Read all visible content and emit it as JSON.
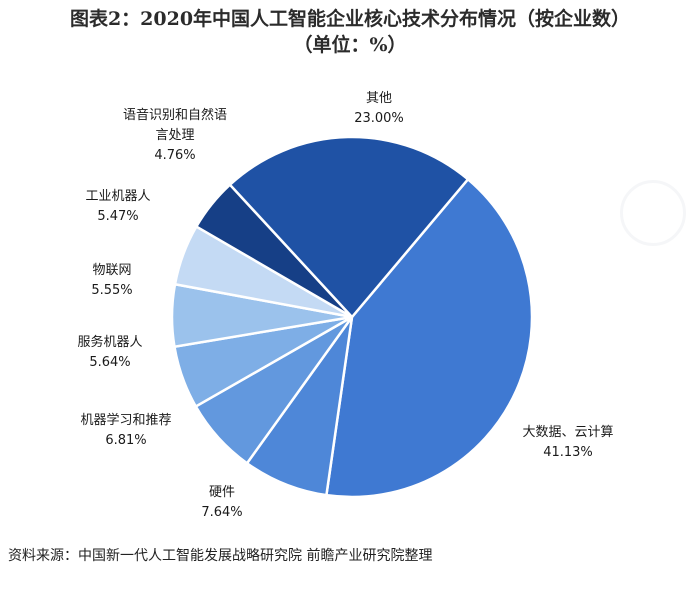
{
  "title_line1": "图表2：2020年中国人工智能企业核心技术分布情况（按企业数）",
  "title_line2": "（单位：%）",
  "source": "资料来源：中国新一代人工智能发展战略研究院 前瞻产业研究院整理",
  "chart_data": {
    "type": "pie",
    "title": "图表2：2020年中国人工智能企业核心技术分布情况（按企业数）（单位：%）",
    "slices": [
      {
        "label_lines": [
          "大数据、云计算"
        ],
        "value": 41.13,
        "value_label": "41.13%",
        "color": "#3f79d2"
      },
      {
        "label_lines": [
          "硬件"
        ],
        "value": 7.64,
        "value_label": "7.64%",
        "color": "#4e87d8"
      },
      {
        "label_lines": [
          "机器学习和推荐"
        ],
        "value": 6.81,
        "value_label": "6.81%",
        "color": "#6298de"
      },
      {
        "label_lines": [
          "服务机器人"
        ],
        "value": 5.64,
        "value_label": "5.64%",
        "color": "#7eaee6"
      },
      {
        "label_lines": [
          "物联网"
        ],
        "value": 5.55,
        "value_label": "5.55%",
        "color": "#9bc2ec"
      },
      {
        "label_lines": [
          "工业机器人"
        ],
        "value": 5.47,
        "value_label": "5.47%",
        "color": "#c4daf4"
      },
      {
        "label_lines": [
          "语音识别和自然语",
          "言处理"
        ],
        "value": 4.76,
        "value_label": "4.76%",
        "color": "#163f86"
      },
      {
        "label_lines": [
          "其他"
        ],
        "value": 23.0,
        "value_label": "23.00%",
        "color": "#1f52a5"
      }
    ],
    "legend": "none"
  }
}
